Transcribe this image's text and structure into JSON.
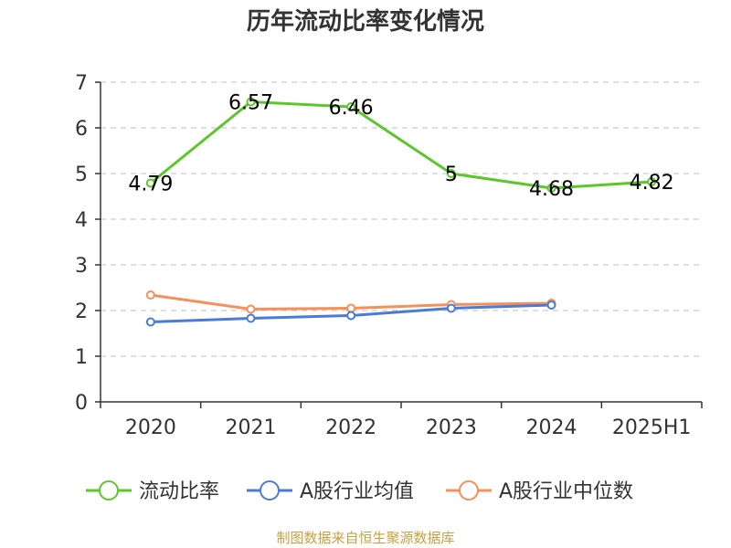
{
  "chart_data": {
    "type": "line",
    "title": "历年流动比率变化情况",
    "categories": [
      "2020",
      "2021",
      "2022",
      "2023",
      "2024",
      "2025H1"
    ],
    "ylim": [
      0,
      7
    ],
    "yticks": [
      0,
      1,
      2,
      3,
      4,
      5,
      6,
      7
    ],
    "grid": true,
    "legend_position": "bottom",
    "series": [
      {
        "name": "流动比率",
        "color": "#5cc72a",
        "values": [
          4.79,
          6.57,
          6.46,
          5.0,
          4.68,
          4.82
        ],
        "labels": [
          "4.79",
          "6.57",
          "6.46",
          "5",
          "4.68",
          "4.82"
        ]
      },
      {
        "name": "A股行业均值",
        "color": "#4a7bd8",
        "values": [
          1.75,
          1.83,
          1.89,
          2.05,
          2.12,
          null
        ]
      },
      {
        "name": "A股行业中位数",
        "color": "#f5905a",
        "values": [
          2.34,
          2.03,
          2.05,
          2.13,
          2.16,
          null
        ]
      }
    ]
  },
  "source": "制图数据来自恒生聚源数据库"
}
